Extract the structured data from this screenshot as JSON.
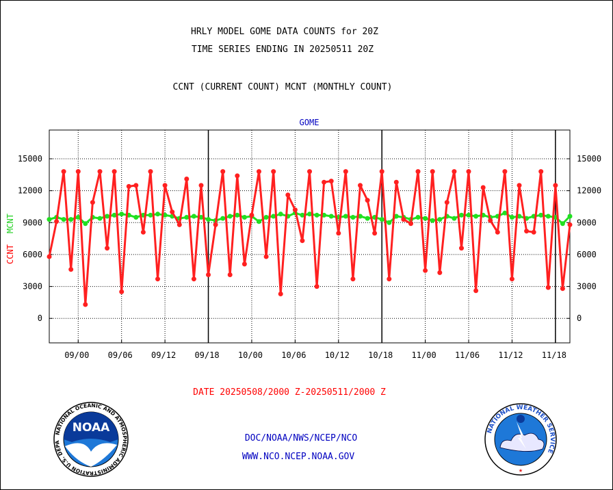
{
  "header": {
    "title_line1": "HRLY MODEL GOME DATA COUNTS for 20Z",
    "title_line2": "TIME SERIES ENDING IN 20250511 20Z",
    "subtitle": "CCNT (CURRENT COUNT) MCNT (MONTHLY COUNT)"
  },
  "footer": {
    "date_range": "DATE 20250508/2000 Z-20250511/2000 Z",
    "org_line": "DOC/NOAA/NWS/NCEP/NCO",
    "url": "WWW.NCO.NCEP.NOAA.GOV"
  },
  "logos": {
    "noaa_text": "NOAA",
    "nws_ring_text": "NATIONAL WEATHER SERVICE",
    "noaa_ring_text": "NATIONAL OCEANIC AND ATMOSPHERIC ADMINISTRATION U.S. DEPARTMENT OF COMMERCE"
  },
  "colors": {
    "ccnt": "#ff2020",
    "mcnt": "#20e020",
    "label_blue": "#0000c0",
    "grid": "#000000"
  },
  "chart_data": {
    "type": "line",
    "title": "GOME",
    "ylabel_ccnt": "CCNT",
    "ylabel_mcnt": "MCNT",
    "ylim": [
      -2300,
      17700
    ],
    "yticks": [
      0,
      3000,
      6000,
      9000,
      12000,
      15000
    ],
    "ytick_labels": [
      "0",
      "3000",
      "6000",
      "9000",
      "12000",
      "15000"
    ],
    "x_range": [
      0,
      72
    ],
    "xtick_positions": [
      4,
      10,
      16,
      22,
      28,
      34,
      40,
      46,
      52,
      58,
      64,
      70
    ],
    "xtick_labels": [
      "09/00",
      "09/06",
      "09/12",
      "09/18",
      "10/00",
      "10/06",
      "10/12",
      "10/18",
      "11/00",
      "11/06",
      "11/12",
      "11/18"
    ],
    "day_boundaries": [
      22,
      46,
      70
    ],
    "grid": true,
    "series": [
      {
        "name": "CCNT",
        "values": [
          5800,
          9100,
          13800,
          4600,
          13800,
          1300,
          10900,
          13800,
          6600,
          13800,
          2500,
          12400,
          12500,
          8100,
          13800,
          3700,
          12500,
          10000,
          8800,
          13100,
          3700,
          12500,
          4100,
          8800,
          13800,
          4100,
          13400,
          5100,
          9700,
          13800,
          5800,
          13800,
          2300,
          11600,
          10200,
          7300,
          13800,
          3000,
          12800,
          12900,
          8000,
          13800,
          3700,
          12500,
          11100,
          8000,
          13800,
          3700,
          12800,
          9300,
          8900,
          13800,
          4500,
          13800,
          4300,
          10900,
          13800,
          6600,
          13800,
          2600,
          12300,
          9200,
          8100,
          13800,
          3700,
          12500,
          8200,
          8100,
          13800,
          2900,
          12500,
          2800,
          8800
        ]
      },
      {
        "name": "MCNT",
        "values": [
          9300,
          9500,
          9300,
          9300,
          9500,
          8900,
          9500,
          9400,
          9600,
          9700,
          9800,
          9700,
          9500,
          9700,
          9700,
          9800,
          9700,
          9600,
          9400,
          9500,
          9600,
          9500,
          9300,
          9200,
          9400,
          9600,
          9700,
          9500,
          9600,
          9100,
          9500,
          9600,
          9800,
          9600,
          9900,
          9700,
          9800,
          9700,
          9700,
          9600,
          9500,
          9600,
          9500,
          9600,
          9400,
          9500,
          9300,
          9000,
          9600,
          9500,
          9300,
          9500,
          9400,
          9200,
          9300,
          9600,
          9400,
          9700,
          9700,
          9600,
          9700,
          9500,
          9600,
          9900,
          9500,
          9600,
          9400,
          9600,
          9700,
          9600,
          9500,
          8900,
          9600
        ]
      }
    ]
  }
}
